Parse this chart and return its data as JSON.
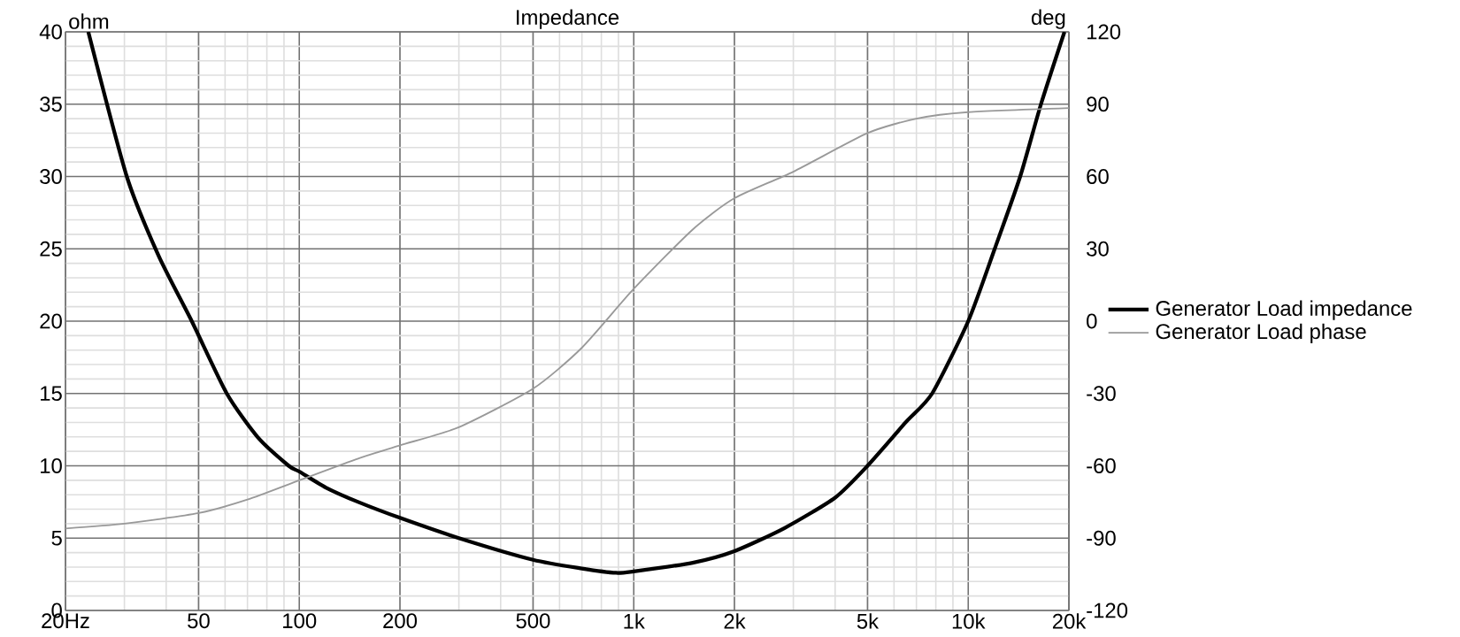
{
  "chart_data": {
    "type": "line",
    "title": "Impedance",
    "ylabel": "ohm",
    "y2label": "deg",
    "log": "x",
    "grid": true,
    "legend": "right",
    "xlim": [
      20,
      20000
    ],
    "xticks": [
      {
        "value": 20,
        "label": "20Hz"
      },
      50,
      100,
      200,
      500,
      {
        "value": 1000,
        "label": "1k"
      },
      {
        "value": 2000,
        "label": "2k"
      },
      {
        "value": 5000,
        "label": "5k"
      },
      {
        "value": 10000,
        "label": "10k"
      },
      {
        "value": 20000,
        "label": "20k"
      }
    ],
    "ylim": [
      0,
      40
    ],
    "yticks": [
      0,
      5,
      10,
      15,
      20,
      25,
      30,
      35,
      40
    ],
    "y2lim": [
      -120,
      120
    ],
    "y2ticks": [
      -120,
      -90,
      -60,
      -30,
      0,
      30,
      60,
      90,
      120
    ],
    "series": [
      {
        "name": "Generator Load impedance",
        "color": "#000000",
        "axis": "y",
        "x": [
          23.4,
          30.5,
          38,
          47.7,
          60.7,
          75,
          93,
          100,
          120,
          150,
          200,
          300,
          500,
          700,
          885,
          1000,
          1500,
          2000,
          2825,
          4000,
          5000,
          6500,
          7800,
          10000,
          12000,
          14300,
          16500,
          19400
        ],
        "values": [
          40,
          30,
          24.5,
          20,
          15,
          12,
          10,
          9.6,
          8.5,
          7.5,
          6.4,
          5,
          3.5,
          2.9,
          2.6,
          2.7,
          3.3,
          4.1,
          5.7,
          7.8,
          10,
          13,
          15,
          20,
          25,
          30,
          35,
          40
        ]
      },
      {
        "name": "Generator Load phase",
        "color": "#999999",
        "axis": "y2",
        "x": [
          20,
          30,
          50,
          70,
          100,
          150,
          200,
          300,
          500,
          700,
          1000,
          1500,
          2000,
          3000,
          5000,
          7000,
          10000,
          20000
        ],
        "values": [
          -86,
          -84,
          -79.6,
          -74,
          -66,
          -57,
          -51.5,
          -44,
          -28,
          -11,
          13.4,
          38,
          51,
          62,
          78,
          84,
          86.7,
          88.4
        ]
      }
    ]
  }
}
